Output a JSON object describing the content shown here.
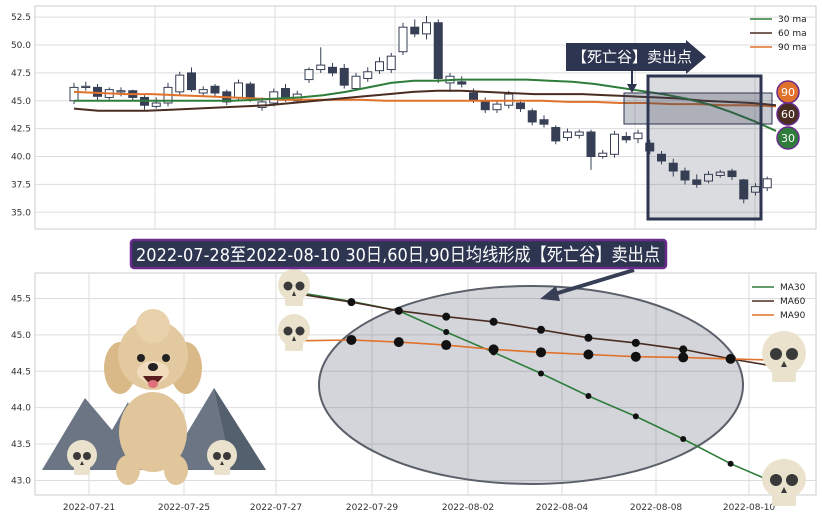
{
  "chart_data": [
    {
      "type": "candlestick",
      "legend": [
        "30 ma",
        "60 ma",
        "90 ma"
      ],
      "ylim": [
        33.5,
        53.5
      ],
      "yticks": [
        "52.5",
        "50.0",
        "47.5",
        "45.0",
        "42.5",
        "40.0",
        "37.5",
        "35.0"
      ],
      "ma30": [
        45.0,
        45.0,
        45.0,
        45.0,
        45.0,
        45.0,
        45.0,
        45.0,
        45.1,
        45.2,
        45.3,
        45.5,
        45.8,
        46.2,
        46.6,
        46.8,
        46.8,
        46.9,
        46.9,
        46.9,
        46.9,
        46.8,
        46.7,
        46.5,
        46.2,
        45.9,
        45.6,
        45.2,
        44.7,
        44.0,
        43.2,
        42.3
      ],
      "ma60": [
        44.3,
        44.1,
        44.1,
        44.1,
        44.2,
        44.3,
        44.4,
        44.5,
        44.6,
        44.8,
        45.0,
        45.2,
        45.4,
        45.6,
        45.8,
        45.9,
        45.9,
        45.8,
        45.7,
        45.6,
        45.6,
        45.6,
        45.5,
        45.4,
        45.3,
        45.2,
        45.0,
        44.9,
        44.8,
        44.6
      ],
      "ma90": [
        45.8,
        45.7,
        45.6,
        45.6,
        45.5,
        45.4,
        45.3,
        45.2,
        45.1,
        45.1,
        45.1,
        45.1,
        45.0,
        45.0,
        45.0,
        45.0,
        45.0,
        45.0,
        45.0,
        44.9,
        44.9,
        44.8,
        44.8,
        44.7,
        44.7,
        44.6,
        44.6,
        44.5
      ],
      "candles": [
        {
          "o": 45.0,
          "c": 46.2,
          "h": 46.6,
          "l": 44.7,
          "up": true
        },
        {
          "o": 46.2,
          "c": 46.3,
          "h": 46.7,
          "l": 45.9,
          "up": true
        },
        {
          "o": 46.2,
          "c": 45.4,
          "h": 46.5,
          "l": 45.0,
          "up": false
        },
        {
          "o": 45.3,
          "c": 46.0,
          "h": 46.2,
          "l": 45.1,
          "up": true
        },
        {
          "o": 45.8,
          "c": 45.9,
          "h": 46.2,
          "l": 45.4,
          "up": true
        },
        {
          "o": 45.9,
          "c": 45.3,
          "h": 46.0,
          "l": 45.0,
          "up": false
        },
        {
          "o": 45.3,
          "c": 44.6,
          "h": 45.5,
          "l": 44.2,
          "up": false
        },
        {
          "o": 44.5,
          "c": 44.8,
          "h": 45.3,
          "l": 44.3,
          "up": true
        },
        {
          "o": 44.8,
          "c": 46.2,
          "h": 46.6,
          "l": 44.5,
          "up": true
        },
        {
          "o": 45.8,
          "c": 47.3,
          "h": 47.6,
          "l": 45.5,
          "up": true
        },
        {
          "o": 47.5,
          "c": 46.0,
          "h": 48.0,
          "l": 45.8,
          "up": false
        },
        {
          "o": 45.7,
          "c": 46.0,
          "h": 46.3,
          "l": 45.4,
          "up": true
        },
        {
          "o": 46.3,
          "c": 45.7,
          "h": 46.5,
          "l": 45.3,
          "up": false
        },
        {
          "o": 45.8,
          "c": 44.9,
          "h": 46.0,
          "l": 44.6,
          "up": false
        },
        {
          "o": 45.3,
          "c": 46.6,
          "h": 46.9,
          "l": 45.0,
          "up": true
        },
        {
          "o": 46.5,
          "c": 45.3,
          "h": 46.7,
          "l": 44.9,
          "up": false
        },
        {
          "o": 44.4,
          "c": 44.9,
          "h": 45.3,
          "l": 44.1,
          "up": true
        },
        {
          "o": 44.8,
          "c": 45.8,
          "h": 46.1,
          "l": 44.5,
          "up": true
        },
        {
          "o": 46.1,
          "c": 45.2,
          "h": 46.5,
          "l": 44.9,
          "up": false
        },
        {
          "o": 45.0,
          "c": 45.6,
          "h": 45.9,
          "l": 44.8,
          "up": true
        },
        {
          "o": 46.9,
          "c": 47.8,
          "h": 48.0,
          "l": 46.6,
          "up": true
        },
        {
          "o": 47.8,
          "c": 48.2,
          "h": 49.8,
          "l": 47.5,
          "up": true
        },
        {
          "o": 48.0,
          "c": 47.5,
          "h": 48.4,
          "l": 47.2,
          "up": false
        },
        {
          "o": 47.9,
          "c": 46.4,
          "h": 48.3,
          "l": 46.1,
          "up": false
        },
        {
          "o": 46.1,
          "c": 47.2,
          "h": 47.5,
          "l": 45.9,
          "up": true
        },
        {
          "o": 47.0,
          "c": 47.6,
          "h": 48.0,
          "l": 46.7,
          "up": true
        },
        {
          "o": 47.7,
          "c": 48.5,
          "h": 48.9,
          "l": 47.4,
          "up": true
        },
        {
          "o": 47.8,
          "c": 49.0,
          "h": 49.3,
          "l": 47.5,
          "up": true
        },
        {
          "o": 49.4,
          "c": 51.6,
          "h": 52.0,
          "l": 49.1,
          "up": true
        },
        {
          "o": 51.6,
          "c": 51.0,
          "h": 52.3,
          "l": 50.7,
          "up": false
        },
        {
          "o": 51.0,
          "c": 52.0,
          "h": 52.6,
          "l": 50.5,
          "up": true
        },
        {
          "o": 52.0,
          "c": 47.0,
          "h": 52.3,
          "l": 46.6,
          "up": false
        },
        {
          "o": 46.6,
          "c": 47.2,
          "h": 47.5,
          "l": 45.8,
          "up": true
        },
        {
          "o": 46.7,
          "c": 46.5,
          "h": 47.2,
          "l": 46.2,
          "up": false
        },
        {
          "o": 45.7,
          "c": 45.1,
          "h": 46.1,
          "l": 44.8,
          "up": false
        },
        {
          "o": 45.0,
          "c": 44.2,
          "h": 45.3,
          "l": 43.9,
          "up": false
        },
        {
          "o": 44.2,
          "c": 44.7,
          "h": 45.0,
          "l": 43.9,
          "up": true
        },
        {
          "o": 44.6,
          "c": 45.6,
          "h": 45.9,
          "l": 44.3,
          "up": true
        },
        {
          "o": 44.8,
          "c": 44.3,
          "h": 45.1,
          "l": 44.0,
          "up": false
        },
        {
          "o": 44.1,
          "c": 43.1,
          "h": 44.3,
          "l": 42.8,
          "up": false
        },
        {
          "o": 43.3,
          "c": 42.9,
          "h": 43.7,
          "l": 42.6,
          "up": false
        },
        {
          "o": 42.6,
          "c": 41.4,
          "h": 42.8,
          "l": 41.1,
          "up": false
        },
        {
          "o": 41.7,
          "c": 42.2,
          "h": 42.5,
          "l": 41.4,
          "up": true
        },
        {
          "o": 41.9,
          "c": 42.2,
          "h": 42.4,
          "l": 41.6,
          "up": true
        },
        {
          "o": 42.2,
          "c": 40.0,
          "h": 42.4,
          "l": 38.8,
          "up": false
        },
        {
          "o": 40.0,
          "c": 40.3,
          "h": 40.6,
          "l": 39.8,
          "up": true
        },
        {
          "o": 40.2,
          "c": 42.0,
          "h": 42.3,
          "l": 39.9,
          "up": true
        },
        {
          "o": 41.8,
          "c": 41.5,
          "h": 42.2,
          "l": 41.2,
          "up": false
        },
        {
          "o": 41.6,
          "c": 42.1,
          "h": 42.4,
          "l": 41.2,
          "up": true
        },
        {
          "o": 41.2,
          "c": 40.5,
          "h": 41.5,
          "l": 40.2,
          "up": false
        },
        {
          "o": 40.2,
          "c": 39.6,
          "h": 40.5,
          "l": 39.3,
          "up": false
        },
        {
          "o": 39.4,
          "c": 38.7,
          "h": 39.8,
          "l": 38.2,
          "up": false
        },
        {
          "o": 38.7,
          "c": 37.9,
          "h": 39.0,
          "l": 37.5,
          "up": false
        },
        {
          "o": 37.9,
          "c": 37.5,
          "h": 38.4,
          "l": 37.2,
          "up": false
        },
        {
          "o": 37.8,
          "c": 38.4,
          "h": 38.7,
          "l": 37.6,
          "up": true
        },
        {
          "o": 38.3,
          "c": 38.6,
          "h": 38.8,
          "l": 38.1,
          "up": true
        },
        {
          "o": 38.7,
          "c": 38.2,
          "h": 38.9,
          "l": 37.9,
          "up": false
        },
        {
          "o": 37.9,
          "c": 36.2,
          "h": 38.0,
          "l": 35.8,
          "up": false
        },
        {
          "o": 36.8,
          "c": 37.3,
          "h": 37.6,
          "l": 36.5,
          "up": true
        },
        {
          "o": 37.2,
          "c": 38.0,
          "h": 38.2,
          "l": 36.9,
          "up": true
        }
      ],
      "ma_badges": [
        "90",
        "60",
        "30"
      ],
      "annotation": "【死亡谷】卖出点"
    },
    {
      "type": "line",
      "legend": [
        "MA30",
        "MA60",
        "MA90"
      ],
      "ylim": [
        42.8,
        45.85
      ],
      "yticks": [
        "45.5",
        "45.0",
        "44.5",
        "44.0",
        "43.5",
        "43.0"
      ],
      "xticks": [
        "2022-07-21",
        "2022-07-25",
        "2022-07-27",
        "2022-07-29",
        "2022-08-02",
        "2022-08-04",
        "2022-08-08",
        "2022-08-10"
      ],
      "title": "2022-07-28至2022-08-10 30日,60日,90日均线形成【死亡谷】卖出点",
      "series": [
        {
          "name": "MA30",
          "color": "#2e7d3a",
          "values": [
            45.57,
            45.46,
            45.33,
            45.04,
            44.76,
            44.47,
            44.16,
            43.88,
            43.57,
            43.23,
            42.95
          ]
        },
        {
          "name": "MA60",
          "color": "#4a2d22",
          "values": [
            45.55,
            45.45,
            45.33,
            45.25,
            45.18,
            45.07,
            44.96,
            44.89,
            44.8,
            44.67,
            44.56
          ]
        },
        {
          "name": "MA90",
          "color": "#e0722b",
          "values": [
            44.92,
            44.93,
            44.9,
            44.86,
            44.8,
            44.76,
            44.73,
            44.7,
            44.69,
            44.67,
            44.65
          ]
        }
      ]
    }
  ],
  "colors": {
    "ma30": "#2e7d3a",
    "ma60": "#4a2d22",
    "ma90": "#e0722b",
    "candle_down": "#363f55",
    "banner_bg": "#2d3550",
    "banner_border": "#6a2b8c"
  },
  "icons": [
    "poodle-dog-illustration",
    "skull-icon"
  ]
}
